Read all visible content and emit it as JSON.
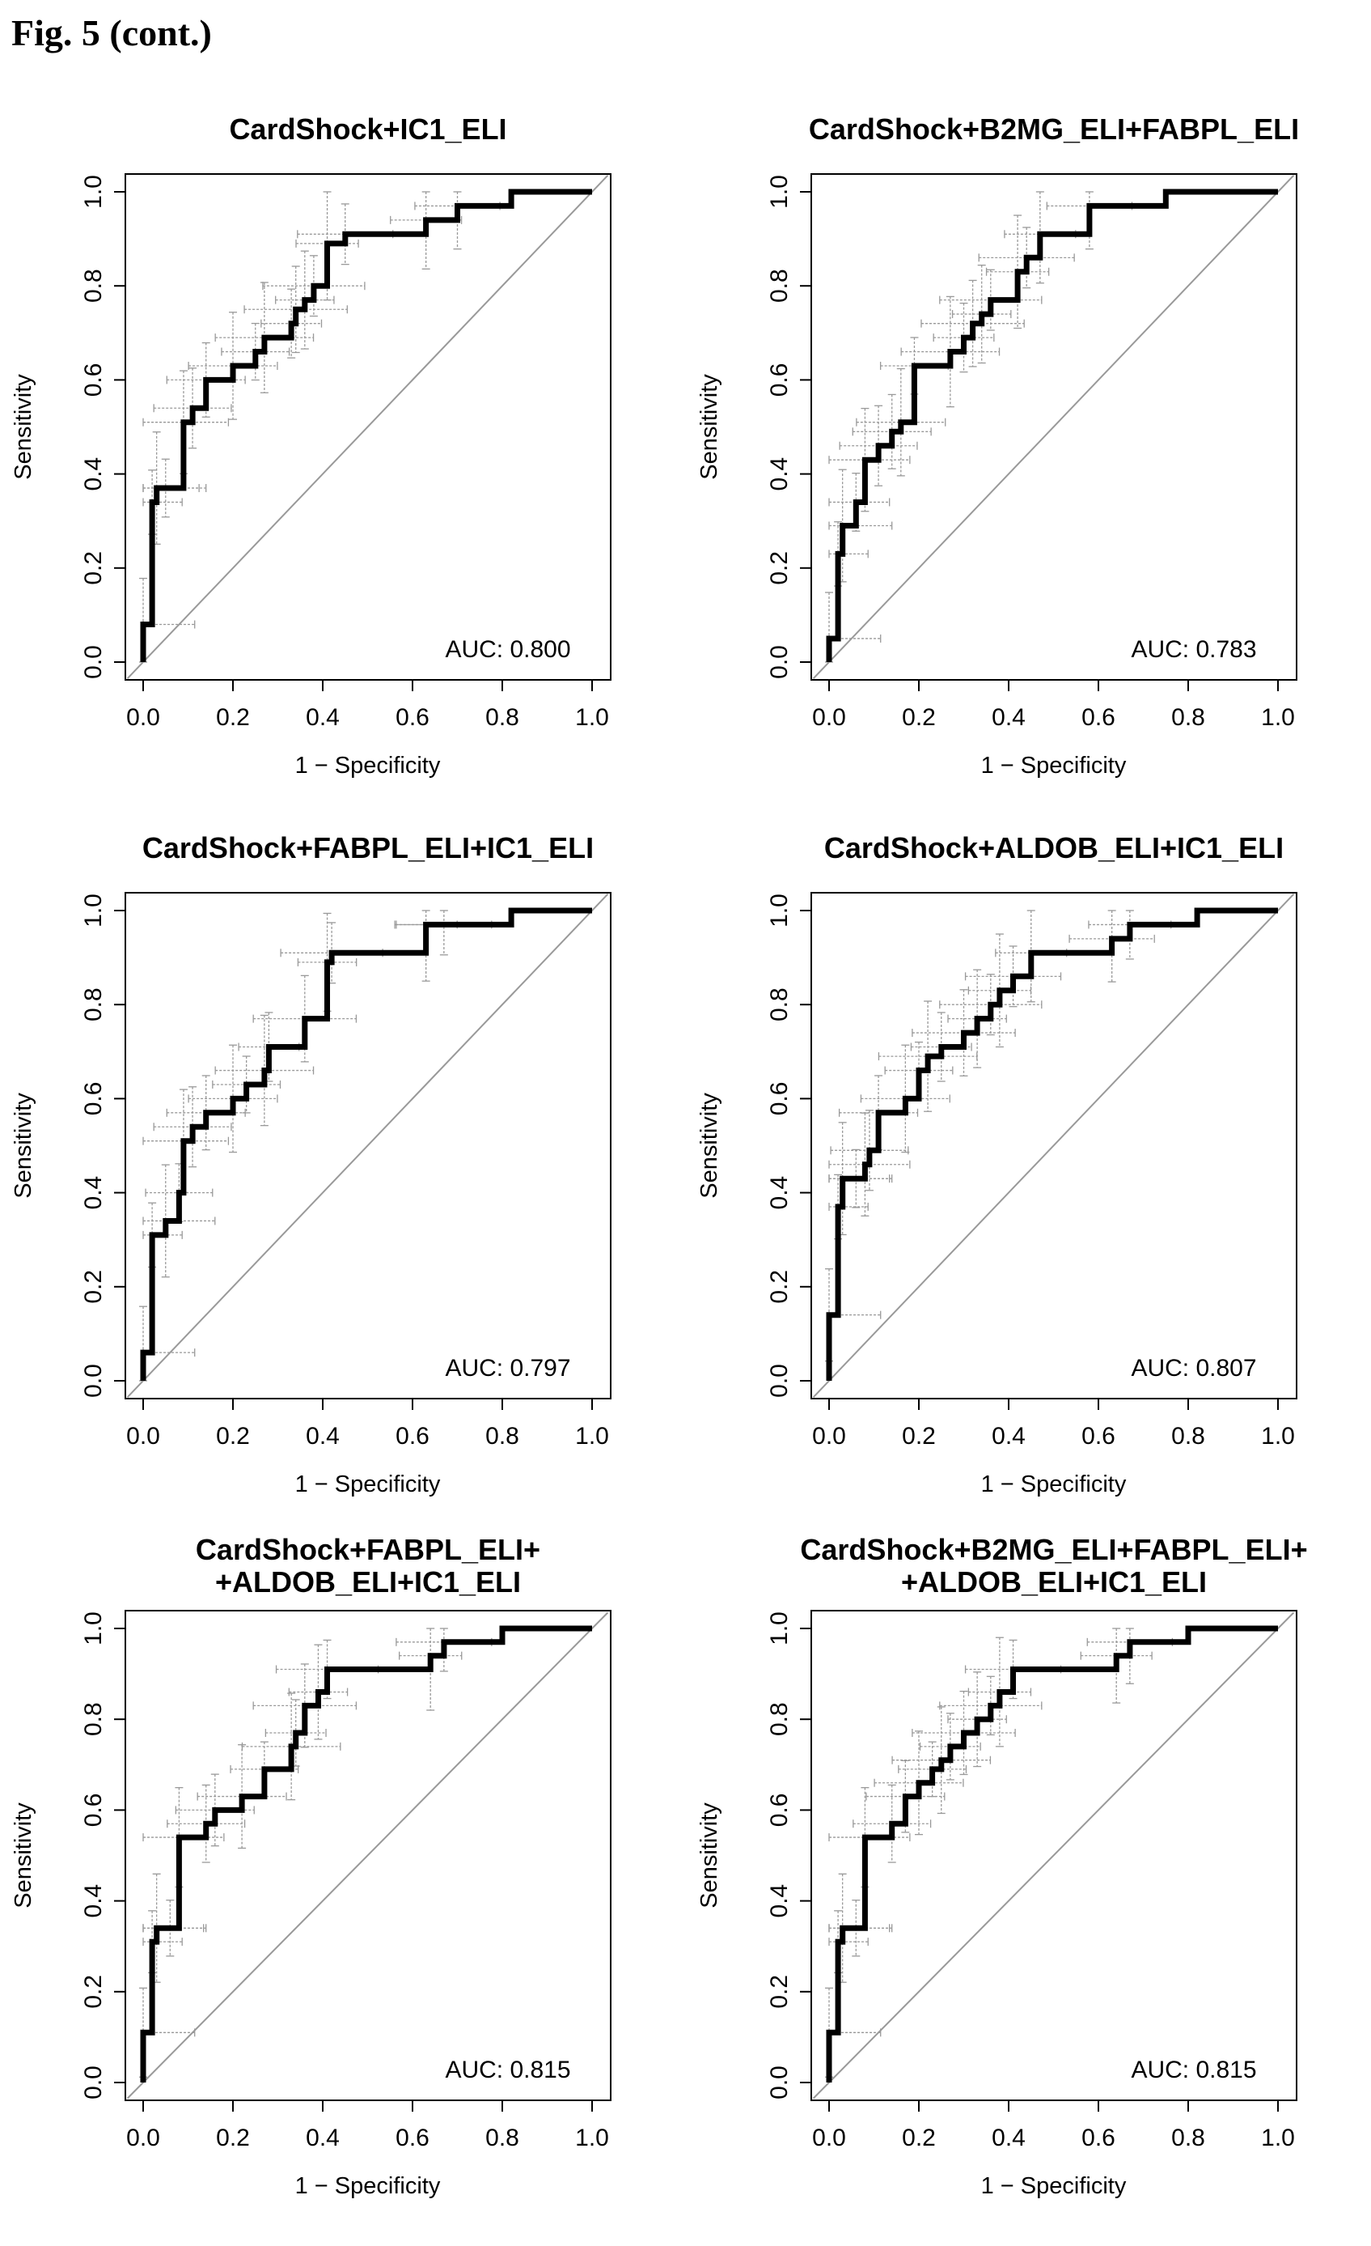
{
  "figure_label": "Fig. 5 (cont.)",
  "colors": {
    "roc": "#000000",
    "ci": "#999999",
    "diagonal": "#999999",
    "frame": "#000000"
  },
  "axis": {
    "xlabel": "1 − Specificity",
    "ylabel": "Sensitivity",
    "ticks": [
      "0.0",
      "0.2",
      "0.4",
      "0.6",
      "0.8",
      "1.0"
    ]
  },
  "chart_data": [
    {
      "type": "line",
      "title_lines": [
        "CardShock+IC1_ELI"
      ],
      "auc_label": "AUC: 0.800",
      "xlabel": "1 − Specificity",
      "ylabel": "Sensitivity",
      "xlim": [
        0,
        1
      ],
      "ylim": [
        0,
        1
      ],
      "series": [
        {
          "x": [
            0,
            0,
            0.02,
            0.02,
            0.03,
            0.03,
            0.05,
            0.05,
            0.09,
            0.09,
            0.11,
            0.11,
            0.14,
            0.14,
            0.2,
            0.2,
            0.25,
            0.25,
            0.27,
            0.27,
            0.33,
            0.33,
            0.34,
            0.34,
            0.36,
            0.36,
            0.38,
            0.38,
            0.41,
            0.41,
            0.45,
            0.45,
            0.63,
            0.63,
            0.7,
            0.7,
            0.82,
            0.82,
            1.0
          ],
          "y": [
            0,
            0.08,
            0.08,
            0.34,
            0.34,
            0.37,
            0.37,
            0.37,
            0.37,
            0.51,
            0.51,
            0.54,
            0.54,
            0.6,
            0.6,
            0.63,
            0.63,
            0.66,
            0.66,
            0.69,
            0.69,
            0.72,
            0.72,
            0.75,
            0.75,
            0.77,
            0.77,
            0.8,
            0.8,
            0.89,
            0.89,
            0.91,
            0.91,
            0.94,
            0.94,
            0.97,
            0.97,
            1.0,
            1.0
          ]
        }
      ]
    },
    {
      "type": "line",
      "title_lines": [
        "CardShock+B2MG_ELI+FABPL_ELI"
      ],
      "auc_label": "AUC: 0.783",
      "xlabel": "1 − Specificity",
      "ylabel": "Sensitivity",
      "xlim": [
        0,
        1
      ],
      "ylim": [
        0,
        1
      ],
      "series": [
        {
          "x": [
            0,
            0,
            0.02,
            0.02,
            0.03,
            0.03,
            0.06,
            0.06,
            0.08,
            0.08,
            0.11,
            0.11,
            0.14,
            0.14,
            0.16,
            0.16,
            0.19,
            0.19,
            0.27,
            0.27,
            0.3,
            0.3,
            0.32,
            0.32,
            0.34,
            0.34,
            0.36,
            0.36,
            0.42,
            0.42,
            0.44,
            0.44,
            0.47,
            0.47,
            0.58,
            0.58,
            0.75,
            0.75,
            1.0
          ],
          "y": [
            0,
            0.05,
            0.05,
            0.23,
            0.23,
            0.29,
            0.29,
            0.34,
            0.34,
            0.43,
            0.43,
            0.46,
            0.46,
            0.49,
            0.49,
            0.51,
            0.51,
            0.63,
            0.63,
            0.66,
            0.66,
            0.69,
            0.69,
            0.72,
            0.72,
            0.74,
            0.74,
            0.77,
            0.77,
            0.83,
            0.83,
            0.86,
            0.86,
            0.91,
            0.91,
            0.97,
            0.97,
            1.0,
            1.0
          ]
        }
      ]
    },
    {
      "type": "line",
      "title_lines": [
        "CardShock+FABPL_ELI+IC1_ELI"
      ],
      "auc_label": "AUC: 0.797",
      "xlabel": "1 − Specificity",
      "ylabel": "Sensitivity",
      "xlim": [
        0,
        1
      ],
      "ylim": [
        0,
        1
      ],
      "series": [
        {
          "x": [
            0,
            0,
            0.02,
            0.02,
            0.05,
            0.05,
            0.08,
            0.08,
            0.09,
            0.09,
            0.11,
            0.11,
            0.14,
            0.14,
            0.2,
            0.2,
            0.23,
            0.23,
            0.27,
            0.27,
            0.28,
            0.28,
            0.36,
            0.36,
            0.41,
            0.41,
            0.42,
            0.42,
            0.63,
            0.63,
            0.67,
            0.67,
            0.82,
            0.82,
            1.0
          ],
          "y": [
            0,
            0.06,
            0.06,
            0.31,
            0.31,
            0.34,
            0.34,
            0.4,
            0.4,
            0.51,
            0.51,
            0.54,
            0.54,
            0.57,
            0.57,
            0.6,
            0.6,
            0.63,
            0.63,
            0.66,
            0.66,
            0.71,
            0.71,
            0.77,
            0.77,
            0.89,
            0.89,
            0.91,
            0.91,
            0.97,
            0.97,
            0.97,
            0.97,
            1.0,
            1.0
          ]
        }
      ]
    },
    {
      "type": "line",
      "title_lines": [
        "CardShock+ALDOB_ELI+IC1_ELI"
      ],
      "auc_label": "AUC: 0.807",
      "xlabel": "1 − Specificity",
      "ylabel": "Sensitivity",
      "xlim": [
        0,
        1
      ],
      "ylim": [
        0,
        1
      ],
      "series": [
        {
          "x": [
            0,
            0,
            0.02,
            0.02,
            0.03,
            0.03,
            0.06,
            0.06,
            0.08,
            0.08,
            0.09,
            0.09,
            0.11,
            0.11,
            0.17,
            0.17,
            0.2,
            0.2,
            0.22,
            0.22,
            0.25,
            0.25,
            0.3,
            0.3,
            0.33,
            0.33,
            0.36,
            0.36,
            0.38,
            0.38,
            0.41,
            0.41,
            0.45,
            0.45,
            0.63,
            0.63,
            0.67,
            0.67,
            0.82,
            0.82,
            1.0
          ],
          "y": [
            0,
            0.14,
            0.14,
            0.37,
            0.37,
            0.43,
            0.43,
            0.43,
            0.43,
            0.46,
            0.46,
            0.49,
            0.49,
            0.57,
            0.57,
            0.6,
            0.6,
            0.66,
            0.66,
            0.69,
            0.69,
            0.71,
            0.71,
            0.74,
            0.74,
            0.77,
            0.77,
            0.8,
            0.8,
            0.83,
            0.83,
            0.86,
            0.86,
            0.91,
            0.91,
            0.94,
            0.94,
            0.97,
            0.97,
            1.0,
            1.0
          ]
        }
      ]
    },
    {
      "type": "line",
      "title_lines": [
        "CardShock+FABPL_ELI+",
        "+ALDOB_ELI+IC1_ELI"
      ],
      "auc_label": "AUC: 0.815",
      "xlabel": "1 − Specificity",
      "ylabel": "Sensitivity",
      "xlim": [
        0,
        1
      ],
      "ylim": [
        0,
        1
      ],
      "series": [
        {
          "x": [
            0,
            0,
            0.02,
            0.02,
            0.03,
            0.03,
            0.06,
            0.06,
            0.08,
            0.08,
            0.14,
            0.14,
            0.16,
            0.16,
            0.22,
            0.22,
            0.27,
            0.27,
            0.33,
            0.33,
            0.34,
            0.34,
            0.36,
            0.36,
            0.39,
            0.39,
            0.41,
            0.41,
            0.64,
            0.64,
            0.67,
            0.67,
            0.8,
            0.8,
            1.0
          ],
          "y": [
            0,
            0.11,
            0.11,
            0.31,
            0.31,
            0.34,
            0.34,
            0.34,
            0.34,
            0.54,
            0.54,
            0.57,
            0.57,
            0.6,
            0.6,
            0.63,
            0.63,
            0.69,
            0.69,
            0.74,
            0.74,
            0.77,
            0.77,
            0.83,
            0.83,
            0.86,
            0.86,
            0.91,
            0.91,
            0.94,
            0.94,
            0.97,
            0.97,
            1.0,
            1.0
          ]
        }
      ]
    },
    {
      "type": "line",
      "title_lines": [
        "CardShock+B2MG_ELI+FABPL_ELI+",
        "+ALDOB_ELI+IC1_ELI"
      ],
      "auc_label": "AUC: 0.815",
      "xlabel": "1 − Specificity",
      "ylabel": "Sensitivity",
      "xlim": [
        0,
        1
      ],
      "ylim": [
        0,
        1
      ],
      "series": [
        {
          "x": [
            0,
            0,
            0.02,
            0.02,
            0.03,
            0.03,
            0.06,
            0.06,
            0.08,
            0.08,
            0.14,
            0.14,
            0.17,
            0.17,
            0.2,
            0.2,
            0.23,
            0.23,
            0.25,
            0.25,
            0.27,
            0.27,
            0.3,
            0.3,
            0.33,
            0.33,
            0.36,
            0.36,
            0.38,
            0.38,
            0.41,
            0.41,
            0.64,
            0.64,
            0.67,
            0.67,
            0.8,
            0.8,
            1.0
          ],
          "y": [
            0,
            0.11,
            0.11,
            0.31,
            0.31,
            0.34,
            0.34,
            0.34,
            0.34,
            0.54,
            0.54,
            0.57,
            0.57,
            0.63,
            0.63,
            0.66,
            0.66,
            0.69,
            0.69,
            0.71,
            0.71,
            0.74,
            0.74,
            0.77,
            0.77,
            0.8,
            0.8,
            0.83,
            0.83,
            0.86,
            0.86,
            0.91,
            0.91,
            0.94,
            0.94,
            0.97,
            0.97,
            1.0,
            1.0
          ]
        }
      ]
    }
  ]
}
